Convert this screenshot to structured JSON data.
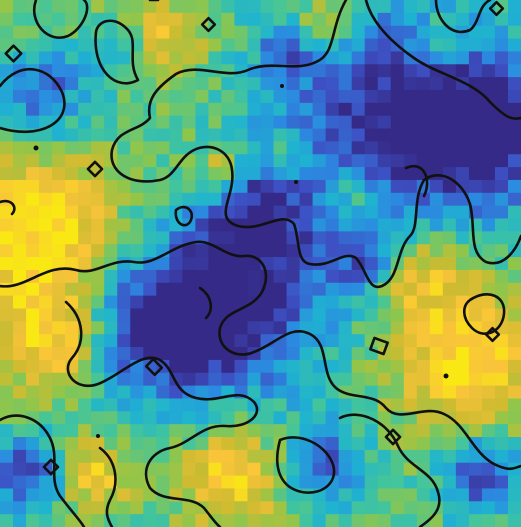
{
  "chart_data": {
    "type": "heatmap",
    "title": "",
    "xlabel": "",
    "ylabel": "",
    "grid": false,
    "legend": "none",
    "axes_visible": false,
    "colorbar": false,
    "grid_size": {
      "rows": 41,
      "cols": 40
    },
    "value_range": [
      0,
      1
    ],
    "colormap": "parula",
    "colormap_stops": [
      "#352a87",
      "#3d50c3",
      "#2b8ae0",
      "#1fb3d0",
      "#44c59a",
      "#8fc64b",
      "#cfbb31",
      "#f9c43a",
      "#f9e814"
    ],
    "contour_level": 0.45,
    "contour_color": "#111111",
    "description_regions": [
      {
        "region": "top-right",
        "level": "low"
      },
      {
        "region": "center",
        "level": "low"
      },
      {
        "region": "left-middle",
        "level": "high"
      },
      {
        "region": "right-middle",
        "level": "high"
      },
      {
        "region": "bottom-center",
        "level": "mixed"
      }
    ]
  }
}
